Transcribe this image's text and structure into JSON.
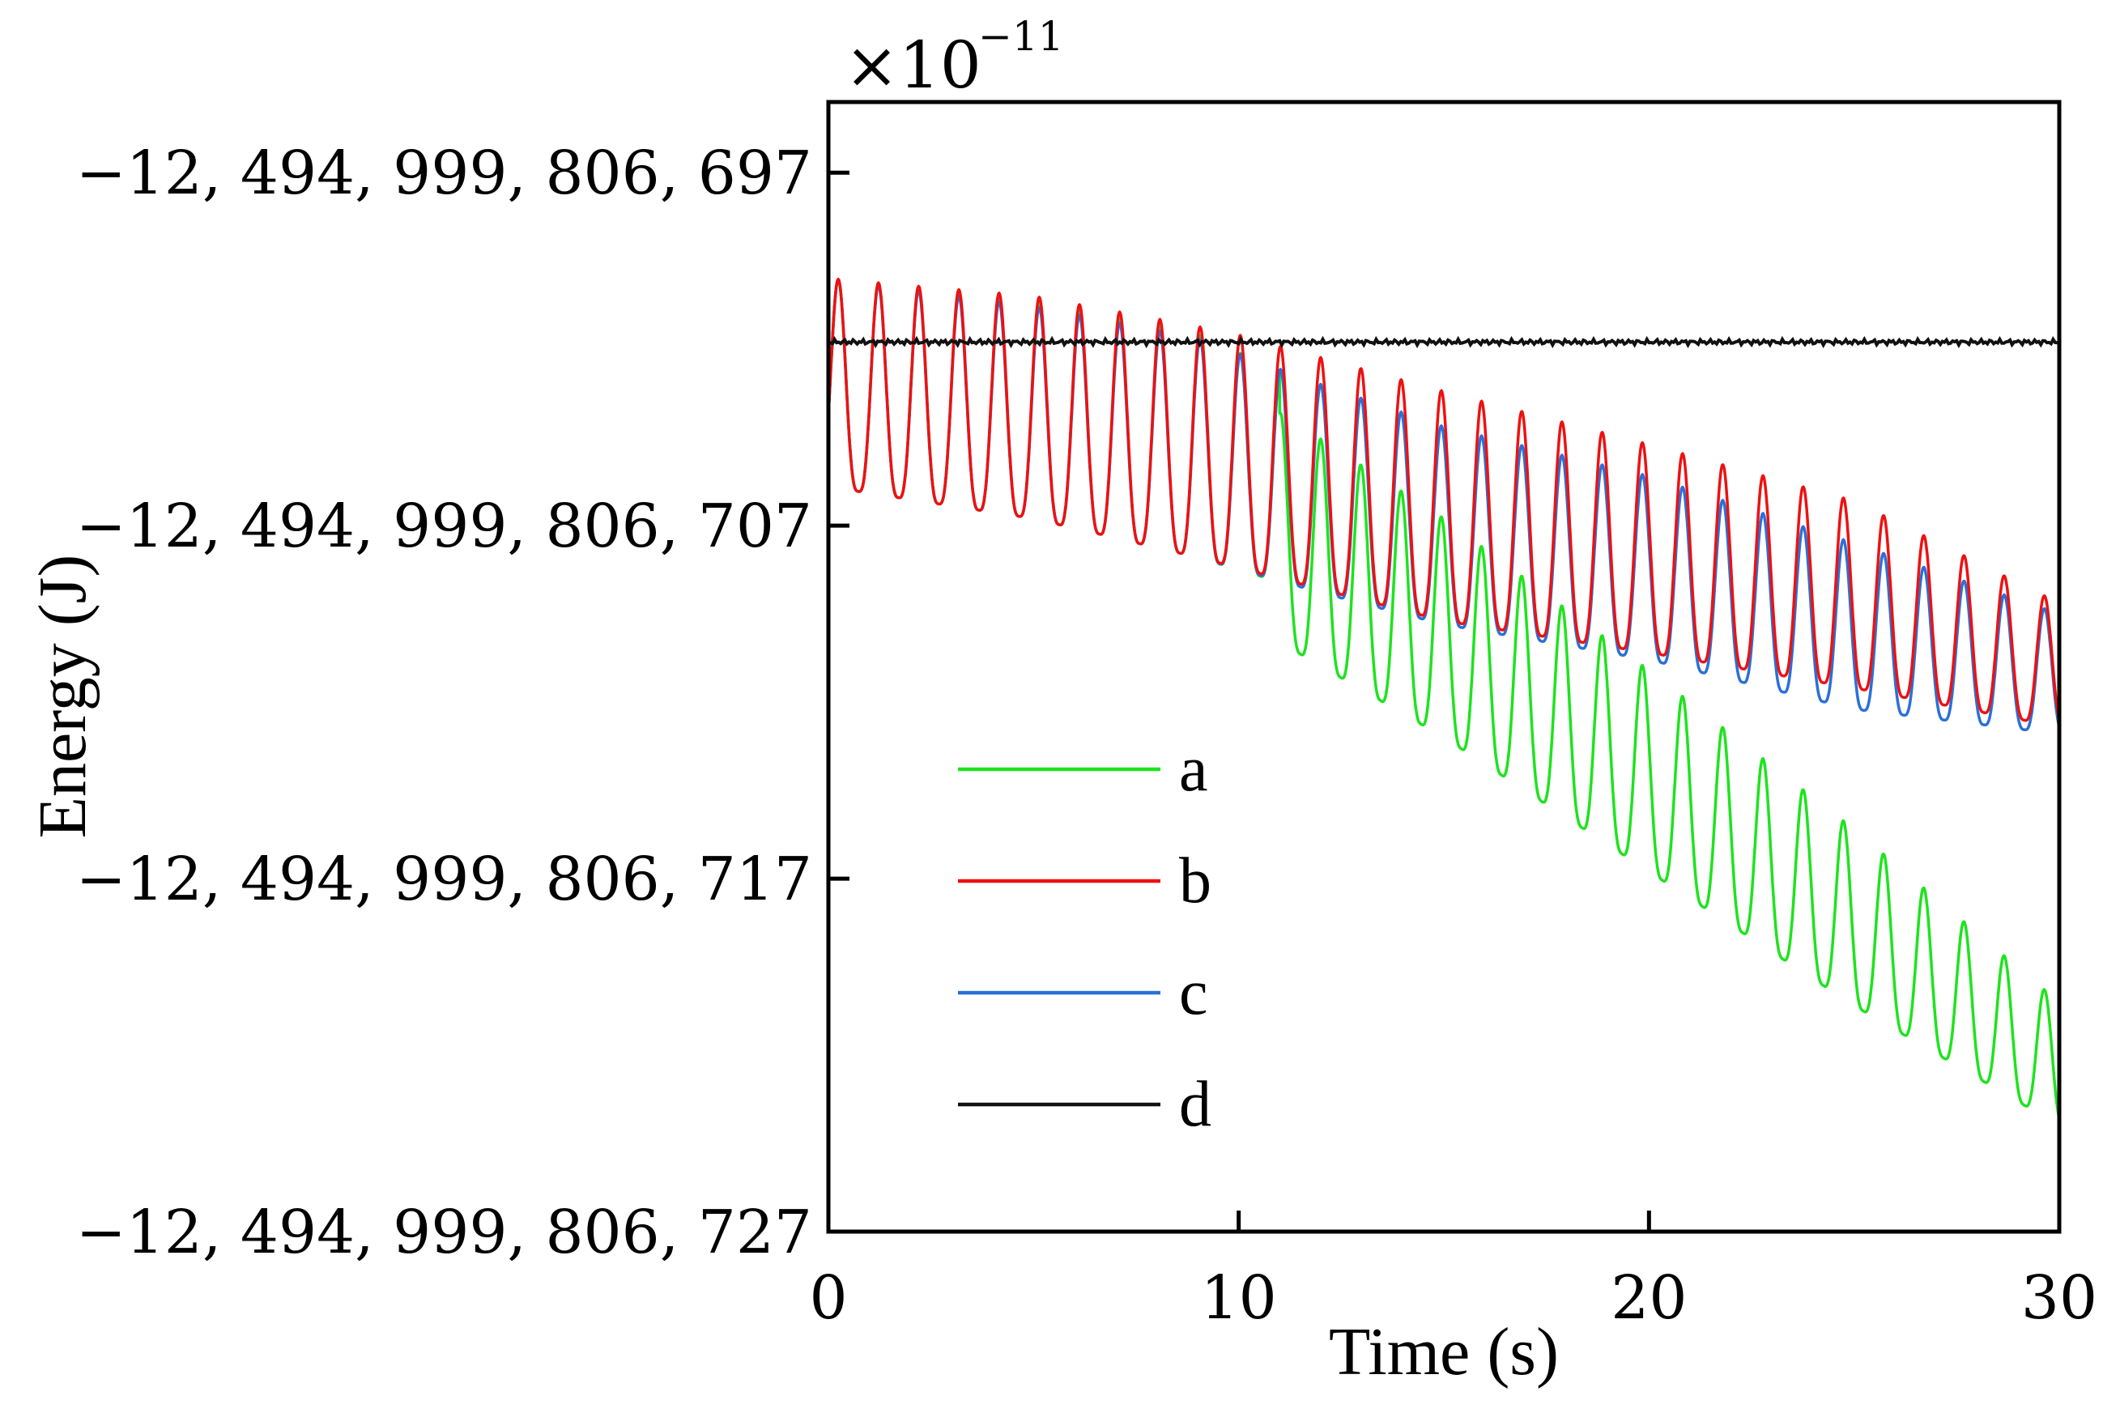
{
  "chart_data": {
    "type": "line",
    "title": "",
    "xlabel": "Time (s)",
    "ylabel": "Energy (J)",
    "xlim": [
      0,
      30
    ],
    "ylim": [
      -727,
      -695
    ],
    "grid": false,
    "legend_position": "bottom-left",
    "y_multiplier": {
      "prefix": "×10",
      "exponent": "−11"
    },
    "x_ticks": [
      {
        "value": 0,
        "label": "0"
      },
      {
        "value": 10,
        "label": "10"
      },
      {
        "value": 20,
        "label": "20"
      },
      {
        "value": 30,
        "label": "30"
      }
    ],
    "y_ticks": [
      {
        "value": -697,
        "label": "−12, 494, 999, 806, 697"
      },
      {
        "value": -707,
        "label": "−12, 494, 999, 806, 707"
      },
      {
        "value": -717,
        "label": "−12, 494, 999, 806, 717"
      },
      {
        "value": -727,
        "label": "−12, 494, 999, 806, 727"
      }
    ],
    "series": [
      {
        "name": "a",
        "color": "#1ee31e",
        "period": 0.98,
        "segments": [
          {
            "t0": 0,
            "t1": 11.0,
            "base": [
              [
                0,
                -705.9
              ],
              [
                5,
                -706.8
              ],
              [
                9,
                -707.9
              ],
              [
                11,
                -708.6
              ]
            ],
            "amp": [
              [
                0,
                5.9
              ],
              [
                9,
                6.3
              ],
              [
                11,
                6.0
              ]
            ],
            "shape": 1.0
          }
        ],
        "after": {
          "t0": 11.0,
          "t1": 30,
          "base": [
            [
              11,
              -710.3
            ],
            [
              15,
              -713.0
            ],
            [
              20,
              -716.8
            ],
            [
              25,
              -720.6
            ],
            [
              30,
              -724.0
            ]
          ],
          "amp": [
            [
              11,
              6.5
            ],
            [
              15,
              6.2
            ],
            [
              20,
              5.7
            ],
            [
              25,
              5.0
            ],
            [
              30,
              3.5
            ]
          ]
        }
      },
      {
        "name": "b",
        "color": "#ee1111",
        "period": 0.98,
        "segments": [
          {
            "t0": 0,
            "t1": 30,
            "base": [
              [
                0,
                -705.9
              ],
              [
                5,
                -706.8
              ],
              [
                9,
                -707.9
              ],
              [
                12,
                -708.8
              ],
              [
                15,
                -709.7
              ],
              [
                20,
                -710.6
              ],
              [
                25,
                -711.6
              ],
              [
                30,
                -712.7
              ]
            ],
            "amp": [
              [
                0,
                5.9
              ],
              [
                5,
                6.3
              ],
              [
                10,
                6.6
              ],
              [
                15,
                6.5
              ],
              [
                20,
                5.9
              ],
              [
                25,
                5.3
              ],
              [
                30,
                3.5
              ]
            ],
            "shape": 1.0
          }
        ]
      },
      {
        "name": "c",
        "color": "#2a70d8",
        "period": 0.98,
        "segments": [
          {
            "t0": 0,
            "t1": 30,
            "base": [
              [
                0,
                -705.9
              ],
              [
                5,
                -706.8
              ],
              [
                9,
                -707.9
              ],
              [
                12,
                -708.9
              ],
              [
                15,
                -709.8
              ],
              [
                20,
                -710.8
              ],
              [
                25,
                -712.2
              ],
              [
                30,
                -712.9
              ]
            ],
            "amp": [
              [
                0,
                5.9
              ],
              [
                5,
                6.0
              ],
              [
                9,
                6.2
              ],
              [
                12,
                5.9
              ],
              [
                15,
                5.6
              ],
              [
                20,
                5.2
              ],
              [
                25,
                4.7
              ],
              [
                30,
                3.4
              ]
            ],
            "shape": 1.0
          }
        ]
      },
      {
        "name": "d",
        "color": "#111111",
        "constant": -701.8,
        "t0": 0,
        "t1": 30
      }
    ]
  }
}
